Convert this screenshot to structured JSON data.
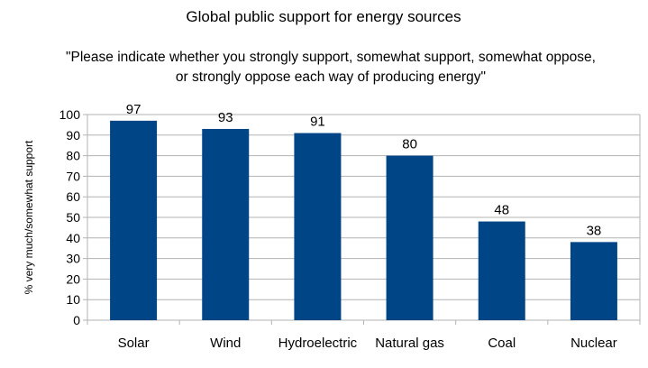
{
  "chart_data": {
    "type": "bar",
    "title": "Global public support for energy sources",
    "subtitle_lines": [
      "\"Please indicate whether you strongly support, somewhat support, somewhat oppose,",
      "or strongly oppose each way of producing energy\""
    ],
    "categories": [
      "Solar",
      "Wind",
      "Hydroelectric",
      "Natural gas",
      "Coal",
      "Nuclear"
    ],
    "values": [
      97,
      93,
      91,
      80,
      48,
      38
    ],
    "data_labels": [
      "97",
      "93",
      "91",
      "80",
      "48",
      "38"
    ],
    "xlabel": "",
    "ylabel": "% very much/somewhat support",
    "ylim": [
      0,
      100
    ],
    "yticks": [
      0,
      10,
      20,
      30,
      40,
      50,
      60,
      70,
      80,
      90,
      100
    ],
    "ytick_labels": [
      "0",
      "10",
      "20",
      "30",
      "40",
      "50",
      "60",
      "70",
      "80",
      "90",
      "100"
    ],
    "grid": true,
    "legend": "none",
    "bar_color": "#004586",
    "grid_color": "#b3b3b3"
  }
}
